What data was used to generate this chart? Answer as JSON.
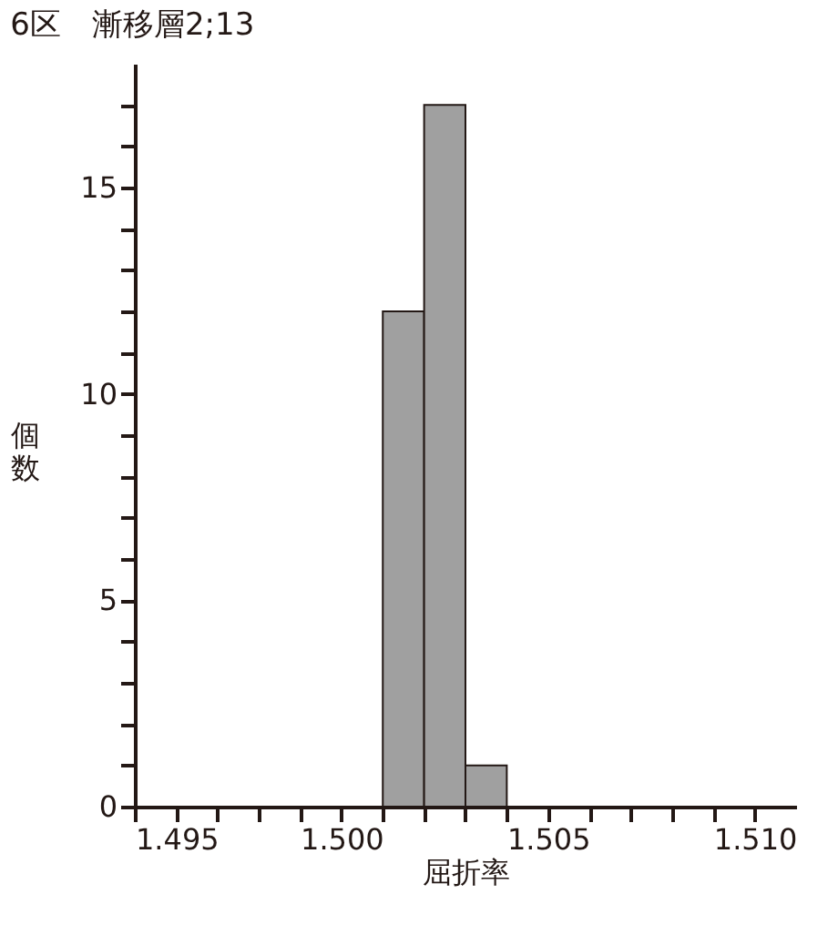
{
  "chart_data": {
    "type": "histogram",
    "title": "6区　漸移層2;13",
    "xlabel": "屈折率",
    "ylabel": "個数",
    "bins": [
      1.501,
      1.502,
      1.503,
      1.504
    ],
    "values": [
      12,
      17,
      1
    ],
    "color": "#a0a0a0",
    "xlim": [
      1.495,
      1.511
    ],
    "ylim": [
      0,
      18
    ],
    "xticks": [
      {
        "value": 1.495,
        "label": "1.495"
      },
      {
        "value": 1.496,
        "label": null
      },
      {
        "value": 1.497,
        "label": null
      },
      {
        "value": 1.498,
        "label": null
      },
      {
        "value": 1.499,
        "label": null
      },
      {
        "value": 1.5,
        "label": "1.500"
      },
      {
        "value": 1.501,
        "label": null
      },
      {
        "value": 1.502,
        "label": null
      },
      {
        "value": 1.503,
        "label": null
      },
      {
        "value": 1.504,
        "label": null
      },
      {
        "value": 1.505,
        "label": "1.505"
      },
      {
        "value": 1.506,
        "label": null
      },
      {
        "value": 1.507,
        "label": null
      },
      {
        "value": 1.508,
        "label": null
      },
      {
        "value": 1.509,
        "label": null
      },
      {
        "value": 1.51,
        "label": "1.510"
      }
    ],
    "yticks": [
      0,
      {
        "value": 1,
        "label": null
      },
      {
        "value": 2,
        "label": null
      },
      {
        "value": 3,
        "label": null
      },
      {
        "value": 4,
        "label": null
      },
      5,
      {
        "value": 6,
        "label": null
      },
      {
        "value": 7,
        "label": null
      },
      {
        "value": 8,
        "label": null
      },
      {
        "value": 9,
        "label": null
      },
      10,
      {
        "value": 11,
        "label": null
      },
      {
        "value": 12,
        "label": null
      },
      {
        "value": 13,
        "label": null
      },
      {
        "value": 14,
        "label": null
      },
      15,
      {
        "value": 16,
        "label": null
      },
      {
        "value": 17,
        "label": null
      }
    ],
    "grid": false
  }
}
